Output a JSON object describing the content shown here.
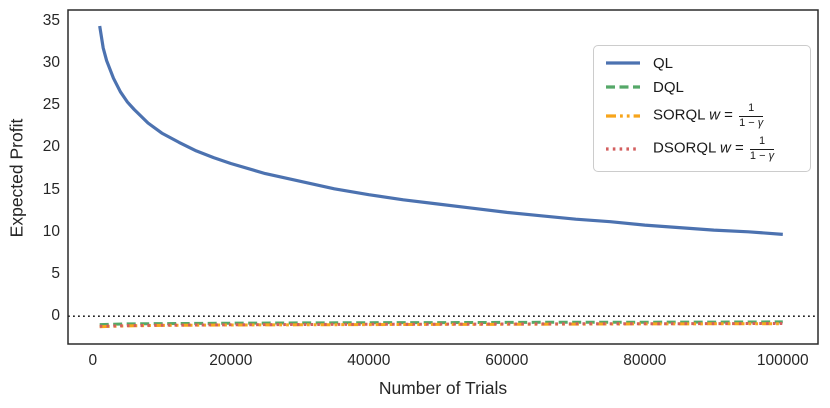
{
  "figure": {
    "background": "#ffffff",
    "spine_color": "#2b2b2b",
    "text_color": "#262626",
    "legend_border_color": "#cccccc"
  },
  "chart_data": {
    "type": "line",
    "title": "",
    "xlabel": "Number of Trials",
    "ylabel": "Expected Profit",
    "xlim": [
      -3600,
      105100
    ],
    "ylim": [
      -3.3,
      36.3
    ],
    "grid": false,
    "legend_position": "upper right",
    "x_ticks": [
      0,
      20000,
      40000,
      60000,
      80000,
      100000
    ],
    "x_tick_labels": [
      "0",
      "20000",
      "40000",
      "60000",
      "80000",
      "100000"
    ],
    "y_ticks": [
      0,
      5,
      10,
      15,
      20,
      25,
      30,
      35
    ],
    "y_tick_labels": [
      "0",
      "5",
      "10",
      "15",
      "20",
      "25",
      "30",
      "35"
    ],
    "zero_line": {
      "y": 0,
      "style": "dotted",
      "color": "#000000"
    },
    "series": [
      {
        "name": "QL",
        "color": "#4C72B0",
        "style": "solid",
        "width": 3.2,
        "x": [
          1000,
          1500,
          2000,
          3000,
          4000,
          5000,
          6000,
          8000,
          10000,
          12500,
          15000,
          17500,
          20000,
          25000,
          30000,
          35000,
          40000,
          45000,
          50000,
          55000,
          60000,
          65000,
          70000,
          75000,
          80000,
          85000,
          90000,
          95000,
          100000
        ],
        "y": [
          34.4,
          31.8,
          30.3,
          28.2,
          26.6,
          25.4,
          24.5,
          22.9,
          21.7,
          20.6,
          19.6,
          18.8,
          18.1,
          16.9,
          16.0,
          15.1,
          14.4,
          13.8,
          13.3,
          12.8,
          12.3,
          11.9,
          11.5,
          11.2,
          10.8,
          10.5,
          10.2,
          10.0,
          9.7
        ]
      },
      {
        "name": "DQL",
        "color": "#55A868",
        "style": "dashed",
        "width": 3,
        "x": [
          1000,
          5000,
          10000,
          20000,
          30000,
          40000,
          50000,
          60000,
          70000,
          80000,
          90000,
          100000
        ],
        "y": [
          -1.0,
          -0.92,
          -0.88,
          -0.83,
          -0.8,
          -0.78,
          -0.76,
          -0.74,
          -0.72,
          -0.71,
          -0.7,
          -0.68
        ]
      },
      {
        "name": "SORQL w = 1/(1-γ)",
        "color": "#F7A51B",
        "style": "dashdot",
        "width": 3,
        "x": [
          1000,
          5000,
          10000,
          20000,
          30000,
          40000,
          50000,
          60000,
          70000,
          80000,
          90000,
          100000
        ],
        "y": [
          -1.25,
          -1.15,
          -1.1,
          -1.05,
          -1.02,
          -1.0,
          -0.98,
          -0.96,
          -0.94,
          -0.92,
          -0.91,
          -0.9
        ]
      },
      {
        "name": "DSORQL w = 1/(1-γ)",
        "color": "#D35F5F",
        "style": "dotted",
        "width": 3,
        "x": [
          1000,
          5000,
          10000,
          20000,
          30000,
          40000,
          50000,
          60000,
          70000,
          80000,
          90000,
          100000
        ],
        "y": [
          -1.2,
          -1.12,
          -1.07,
          -1.02,
          -0.99,
          -0.97,
          -0.95,
          -0.93,
          -0.91,
          -0.9,
          -0.88,
          -0.87
        ]
      }
    ]
  },
  "legend": {
    "items": [
      {
        "label": "QL",
        "color": "#4C72B0",
        "style": "solid",
        "math": false
      },
      {
        "label": "DQL",
        "color": "#55A868",
        "style": "dashed",
        "math": false
      },
      {
        "label": "SORQL",
        "color": "#F7A51B",
        "style": "dashdot",
        "math": true,
        "var": "w",
        "eq": " = ",
        "frac_num": "1",
        "frac_den_pre": "1 − ",
        "frac_den_var": "γ"
      },
      {
        "label": "DSORQL",
        "color": "#D35F5F",
        "style": "dotted",
        "math": true,
        "var": "w",
        "eq": " = ",
        "frac_num": "1",
        "frac_den_pre": "1 − ",
        "frac_den_var": "γ"
      }
    ]
  }
}
